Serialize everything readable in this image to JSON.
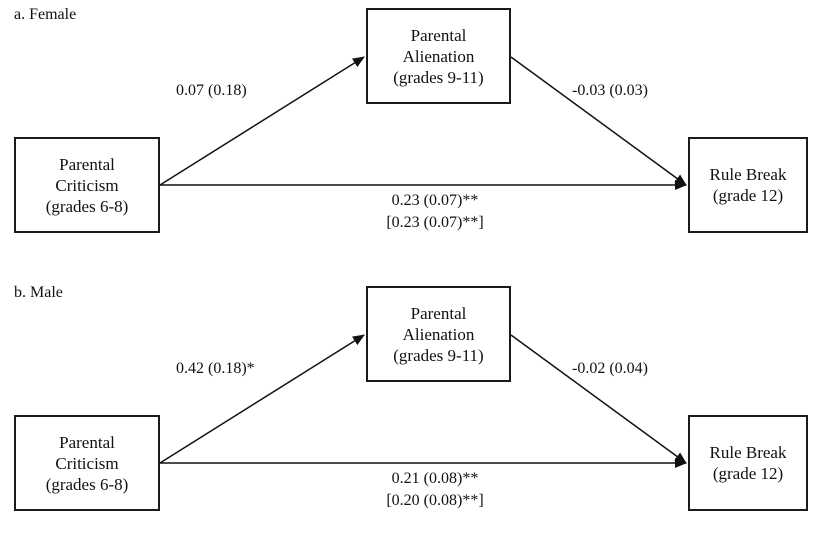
{
  "panels": [
    {
      "label": "a. Female",
      "criticism": [
        "Parental",
        "Criticism",
        "(grades 6-8)"
      ],
      "alienation": [
        "Parental",
        "Alienation",
        "(grades 9-11)"
      ],
      "rulebreak": [
        "Rule Break",
        "(grade 12)"
      ],
      "path_a": "0.07 (0.18)",
      "path_b": "-0.03 (0.03)",
      "path_c": "0.23 (0.07)**",
      "path_c_prime": "[0.23 (0.07)**]"
    },
    {
      "label": "b. Male",
      "criticism": [
        "Parental",
        "Criticism",
        "(grades 6-8)"
      ],
      "alienation": [
        "Parental",
        "Alienation",
        "(grades 9-11)"
      ],
      "rulebreak": [
        "Rule Break",
        "(grade 12)"
      ],
      "path_a": "0.42 (0.18)*",
      "path_b": "-0.02 (0.04)",
      "path_c": "0.21 (0.08)**",
      "path_c_prime": "[0.20 (0.08)**]"
    }
  ]
}
